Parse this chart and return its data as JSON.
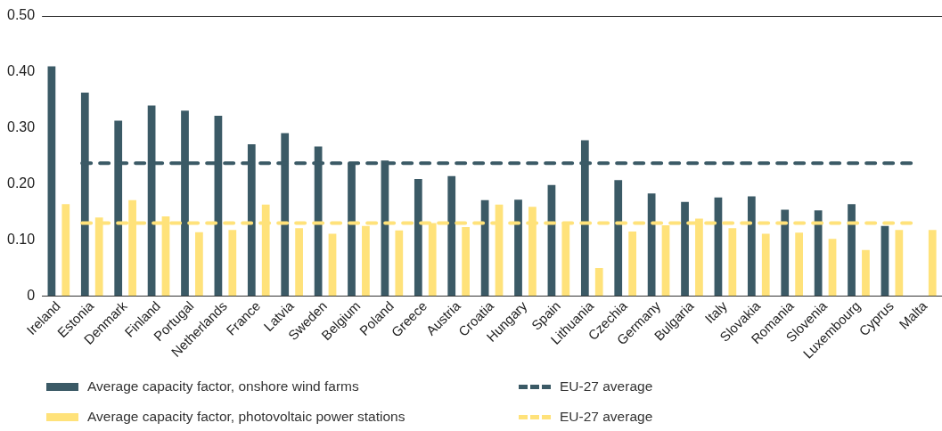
{
  "chart_data": {
    "type": "bar",
    "categories": [
      "Ireland",
      "Estonia",
      "Denmark",
      "Finland",
      "Portugal",
      "Netherlands",
      "France",
      "Latvia",
      "Sweden",
      "Belgium",
      "Poland",
      "Greece",
      "Austria",
      "Croatia",
      "Hungary",
      "Spain",
      "Lithuania",
      "Czechia",
      "Germany",
      "Bulgaria",
      "Italy",
      "Slovakia",
      "Romania",
      "Slovenia",
      "Luxembourg",
      "Cyprus",
      "Malta"
    ],
    "series": [
      {
        "name": "Average capacity factor, onshore wind farms",
        "color": "#3b5a66",
        "values": [
          0.41,
          0.363,
          0.313,
          0.34,
          0.331,
          0.322,
          0.271,
          0.291,
          0.267,
          0.237,
          0.242,
          0.209,
          0.214,
          0.171,
          0.172,
          0.198,
          0.278,
          0.207,
          0.183,
          0.168,
          0.176,
          0.178,
          0.154,
          0.153,
          0.164,
          0.125,
          null
        ]
      },
      {
        "name": "Average capacity factor, photovoltaic power stations",
        "color": "#ffe27a",
        "values": [
          0.164,
          0.14,
          0.171,
          0.142,
          0.114,
          0.118,
          0.163,
          0.121,
          0.111,
          0.125,
          0.117,
          0.13,
          0.123,
          0.163,
          0.159,
          0.129,
          0.05,
          0.115,
          0.126,
          0.138,
          0.121,
          0.111,
          0.113,
          0.102,
          0.082,
          0.118,
          0.118
        ]
      }
    ],
    "ref_lines": [
      {
        "axis": "y",
        "value": 0.237,
        "label": "EU-27 average",
        "color": "#3b5a66",
        "line_style": "dashed"
      },
      {
        "axis": "y",
        "value": 0.13,
        "label": "EU-27 average",
        "color": "#ffe27a",
        "line_style": "dashed"
      }
    ],
    "ylim": [
      0,
      0.5
    ],
    "yticks": [
      {
        "value": 0,
        "label": "0"
      },
      {
        "value": 0.1,
        "label": "0.10"
      },
      {
        "value": 0.2,
        "label": "0.20"
      },
      {
        "value": 0.3,
        "label": "0.30"
      },
      {
        "value": 0.4,
        "label": "0.40"
      },
      {
        "value": 0.5,
        "label": "0.50"
      }
    ],
    "grid": false,
    "legend": "bottom"
  }
}
